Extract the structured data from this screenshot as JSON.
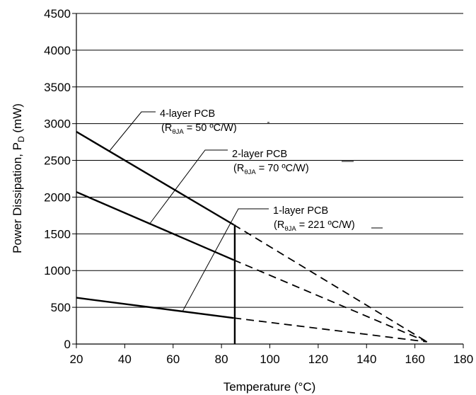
{
  "chart_data": {
    "type": "line",
    "xlabel": "Temperature (°C)",
    "ylabel_main": "Power Dissipation, P",
    "ylabel_sub": "D",
    "ylabel_unit": " (mW)",
    "xlim": [
      20,
      180
    ],
    "ylim": [
      0,
      4500
    ],
    "x_ticks": [
      20,
      40,
      60,
      80,
      100,
      120,
      140,
      160,
      180
    ],
    "y_ticks": [
      0,
      500,
      1000,
      1500,
      2000,
      2500,
      3000,
      3500,
      4000,
      4500
    ],
    "grid": "horizontal",
    "series": [
      {
        "name": "4-layer PCB",
        "annotation_rja": "50 ºC/W",
        "solid": [
          [
            20,
            2890
          ],
          [
            85,
            1625
          ]
        ],
        "dashed": [
          [
            85,
            1625
          ],
          [
            165,
            30
          ]
        ]
      },
      {
        "name": "2-layer PCB",
        "annotation_rja": "70 ºC/W",
        "solid": [
          [
            20,
            2070
          ],
          [
            85,
            1145
          ]
        ],
        "dashed": [
          [
            85,
            1145
          ],
          [
            165,
            30
          ]
        ]
      },
      {
        "name": "1-layer PCB",
        "annotation_rja": "221 ºC/W",
        "solid": [
          [
            20,
            630
          ],
          [
            85,
            355
          ]
        ],
        "dashed": [
          [
            85,
            355
          ],
          [
            165,
            30
          ]
        ]
      }
    ],
    "vertical_marker": {
      "x": 85.5,
      "y_from": 0,
      "y_to": 1625
    },
    "annotation_prefix": "(R",
    "annotation_sub": "θJA",
    "annotation_equals": " = "
  }
}
